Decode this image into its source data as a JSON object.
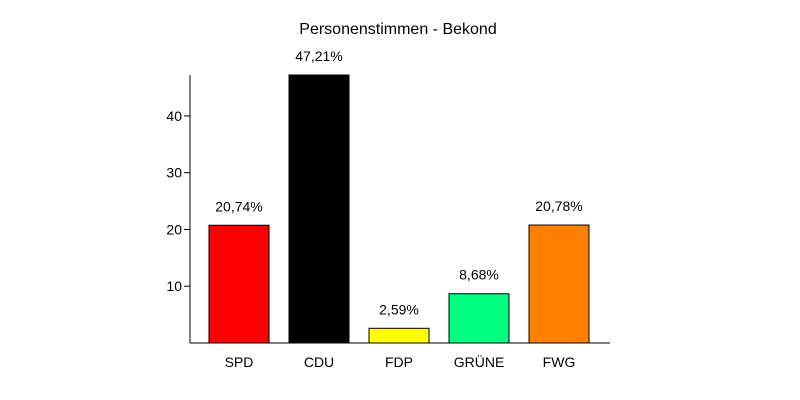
{
  "chart_data": {
    "type": "bar",
    "title": "Personenstimmen - Bekond",
    "xlabel": "",
    "ylabel": "",
    "categories": [
      "SPD",
      "CDU",
      "FDP",
      "GRÜNE",
      "FWG"
    ],
    "values": [
      20.74,
      47.21,
      2.59,
      8.68,
      20.78
    ],
    "value_labels": [
      "20,74%",
      "47,21%",
      "2,59%",
      "8,68%",
      "20,78%"
    ],
    "colors": [
      "#ff0000",
      "#000000",
      "#ffff00",
      "#00ff80",
      "#ff8000"
    ],
    "ylim": [
      0,
      47.21
    ],
    "yticks": [
      10,
      20,
      30,
      40
    ],
    "ytick_labels": [
      "10",
      "20",
      "30",
      "40"
    ],
    "grid": false,
    "legend": "none"
  }
}
